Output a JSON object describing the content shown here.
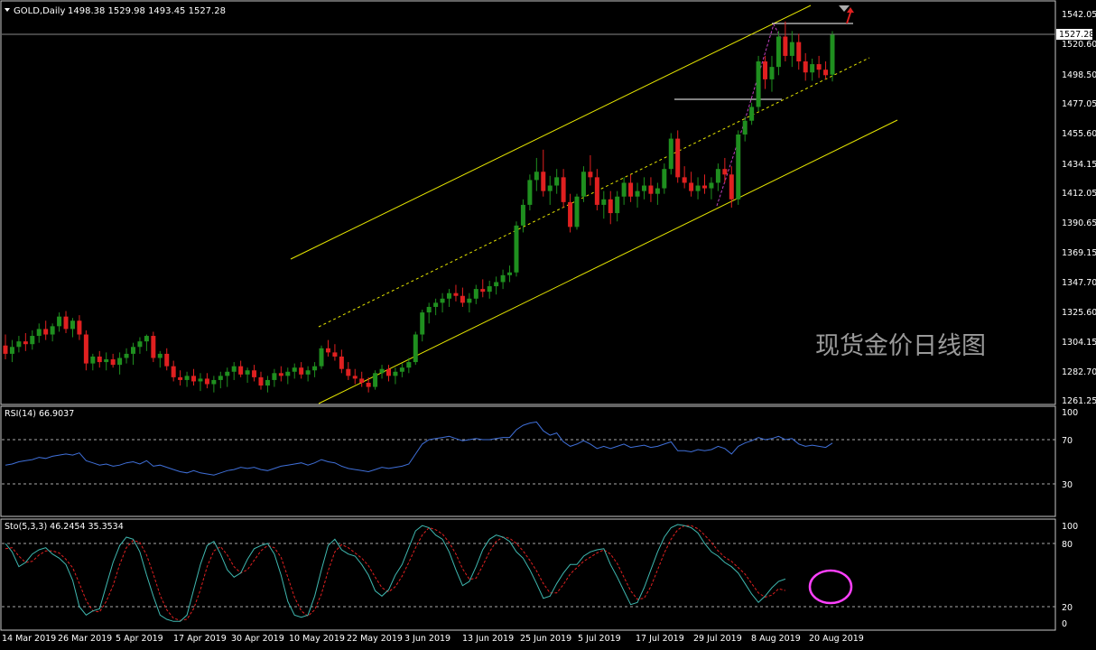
{
  "colors": {
    "background": "#000000",
    "frame": "#c8c8c8",
    "text": "#ffffff",
    "bull": "#1f8f1f",
    "bear": "#e02020",
    "channel": "#e6e600",
    "rsi_line": "#3f6fd8",
    "sto_main": "#3fb8b0",
    "sto_signal": "#e02020",
    "trend_magenta": "#c040c0",
    "circle": "#ff40ff",
    "current_price": "#888888"
  },
  "header": {
    "symbol_line": "GOLD,Daily",
    "ohlc": "1498.38 1529.98 1493.45 1527.28"
  },
  "watermark": "现货金价日线图",
  "price_axis": {
    "labels": [
      "1542.05",
      "1520.60",
      "1498.50",
      "1477.05",
      "1455.60",
      "1434.15",
      "1412.05",
      "1390.65",
      "1369.15",
      "1347.70",
      "1325.60",
      "1304.15",
      "1282.70",
      "1261.25"
    ],
    "current_label": "1527.28",
    "current_value": 1527.28
  },
  "rsi_panel": {
    "title": "RSI(14) 66.9037",
    "axis_labels": [
      "100",
      "70",
      "30"
    ],
    "levels": [
      70,
      30
    ]
  },
  "sto_panel": {
    "title": "Sto(5,3,3) 46.2454 35.3534",
    "axis_labels": [
      "100",
      "80",
      "20",
      "0"
    ],
    "levels": [
      80,
      20
    ]
  },
  "date_axis": {
    "labels": [
      "14 Mar 2019",
      "26 Mar 2019",
      "5 Apr 2019",
      "17 Apr 2019",
      "30 Apr 2019",
      "10 May 2019",
      "22 May 2019",
      "3 Jun 2019",
      "13 Jun 2019",
      "25 Jun 2019",
      "5 Jul 2019",
      "17 Jul 2019",
      "29 Jul 2019",
      "8 Aug 2019",
      "20 Aug 2019"
    ]
  },
  "chart_data": {
    "type": "candlestick",
    "title": "GOLD,Daily",
    "symbol": "GOLD",
    "timeframe": "Daily",
    "last_bar": {
      "open": 1498.38,
      "high": 1529.98,
      "low": 1493.45,
      "close": 1527.28
    },
    "ylim": [
      1258,
      1546
    ],
    "x_tick_labels": [
      "14 Mar 2019",
      "26 Mar 2019",
      "5 Apr 2019",
      "17 Apr 2019",
      "30 Apr 2019",
      "10 May 2019",
      "22 May 2019",
      "3 Jun 2019",
      "13 Jun 2019",
      "25 Jun 2019",
      "5 Jul 2019",
      "17 Jul 2019",
      "29 Jul 2019",
      "8 Aug 2019",
      "20 Aug 2019"
    ],
    "candles": [
      [
        1302,
        1310,
        1292,
        1296
      ],
      [
        1296,
        1306,
        1290,
        1301
      ],
      [
        1301,
        1309,
        1297,
        1305
      ],
      [
        1305,
        1311,
        1298,
        1303
      ],
      [
        1303,
        1313,
        1299,
        1309
      ],
      [
        1309,
        1318,
        1304,
        1314
      ],
      [
        1314,
        1320,
        1306,
        1310
      ],
      [
        1310,
        1318,
        1305,
        1316
      ],
      [
        1316,
        1326,
        1312,
        1323
      ],
      [
        1323,
        1327,
        1311,
        1314
      ],
      [
        1314,
        1322,
        1308,
        1320
      ],
      [
        1320,
        1324,
        1306,
        1310
      ],
      [
        1310,
        1313,
        1284,
        1289
      ],
      [
        1289,
        1296,
        1284,
        1294
      ],
      [
        1294,
        1298,
        1286,
        1290
      ],
      [
        1290,
        1297,
        1284,
        1292
      ],
      [
        1292,
        1296,
        1286,
        1288
      ],
      [
        1288,
        1297,
        1281,
        1293
      ],
      [
        1293,
        1300,
        1289,
        1296
      ],
      [
        1296,
        1304,
        1288,
        1301
      ],
      [
        1301,
        1308,
        1296,
        1305
      ],
      [
        1305,
        1310,
        1298,
        1309
      ],
      [
        1309,
        1312,
        1290,
        1293
      ],
      [
        1293,
        1298,
        1286,
        1296
      ],
      [
        1296,
        1300,
        1284,
        1287
      ],
      [
        1287,
        1291,
        1276,
        1279
      ],
      [
        1279,
        1284,
        1273,
        1277
      ],
      [
        1277,
        1283,
        1272,
        1280
      ],
      [
        1280,
        1285,
        1273,
        1276
      ],
      [
        1276,
        1282,
        1269,
        1278
      ],
      [
        1278,
        1282,
        1271,
        1274
      ],
      [
        1274,
        1280,
        1268,
        1277
      ],
      [
        1277,
        1283,
        1271,
        1280
      ],
      [
        1280,
        1286,
        1272,
        1283
      ],
      [
        1283,
        1290,
        1277,
        1287
      ],
      [
        1287,
        1291,
        1279,
        1281
      ],
      [
        1281,
        1286,
        1275,
        1284
      ],
      [
        1284,
        1288,
        1276,
        1279
      ],
      [
        1279,
        1283,
        1270,
        1273
      ],
      [
        1273,
        1280,
        1268,
        1277
      ],
      [
        1277,
        1285,
        1272,
        1282
      ],
      [
        1282,
        1287,
        1276,
        1280
      ],
      [
        1280,
        1286,
        1274,
        1283
      ],
      [
        1283,
        1289,
        1278,
        1286
      ],
      [
        1286,
        1290,
        1278,
        1281
      ],
      [
        1281,
        1287,
        1276,
        1284
      ],
      [
        1284,
        1290,
        1279,
        1287
      ],
      [
        1287,
        1302,
        1285,
        1300
      ],
      [
        1300,
        1306,
        1294,
        1297
      ],
      [
        1297,
        1303,
        1291,
        1294
      ],
      [
        1294,
        1299,
        1282,
        1285
      ],
      [
        1285,
        1290,
        1277,
        1280
      ],
      [
        1280,
        1285,
        1274,
        1278
      ],
      [
        1278,
        1283,
        1272,
        1275
      ],
      [
        1275,
        1279,
        1268,
        1272
      ],
      [
        1272,
        1284,
        1270,
        1282
      ],
      [
        1282,
        1288,
        1278,
        1285
      ],
      [
        1285,
        1288,
        1276,
        1280
      ],
      [
        1280,
        1286,
        1274,
        1283
      ],
      [
        1283,
        1289,
        1279,
        1286
      ],
      [
        1286,
        1293,
        1282,
        1290
      ],
      [
        1290,
        1312,
        1288,
        1310
      ],
      [
        1310,
        1328,
        1305,
        1326
      ],
      [
        1326,
        1333,
        1318,
        1330
      ],
      [
        1330,
        1336,
        1324,
        1333
      ],
      [
        1333,
        1340,
        1326,
        1336
      ],
      [
        1336,
        1343,
        1330,
        1340
      ],
      [
        1340,
        1346,
        1334,
        1338
      ],
      [
        1338,
        1344,
        1330,
        1333
      ],
      [
        1333,
        1340,
        1326,
        1336
      ],
      [
        1336,
        1346,
        1332,
        1343
      ],
      [
        1343,
        1350,
        1337,
        1341
      ],
      [
        1341,
        1349,
        1336,
        1345
      ],
      [
        1345,
        1352,
        1339,
        1348
      ],
      [
        1348,
        1357,
        1343,
        1353
      ],
      [
        1353,
        1360,
        1348,
        1355
      ],
      [
        1355,
        1392,
        1352,
        1389
      ],
      [
        1389,
        1408,
        1384,
        1404
      ],
      [
        1404,
        1426,
        1400,
        1422
      ],
      [
        1422,
        1438,
        1414,
        1428
      ],
      [
        1428,
        1444,
        1410,
        1414
      ],
      [
        1414,
        1425,
        1404,
        1418
      ],
      [
        1418,
        1430,
        1412,
        1424
      ],
      [
        1424,
        1430,
        1402,
        1406
      ],
      [
        1406,
        1412,
        1384,
        1388
      ],
      [
        1388,
        1412,
        1386,
        1410
      ],
      [
        1410,
        1432,
        1406,
        1428
      ],
      [
        1428,
        1440,
        1418,
        1424
      ],
      [
        1424,
        1430,
        1400,
        1404
      ],
      [
        1404,
        1414,
        1394,
        1408
      ],
      [
        1408,
        1414,
        1390,
        1398
      ],
      [
        1398,
        1414,
        1392,
        1410
      ],
      [
        1410,
        1424,
        1404,
        1420
      ],
      [
        1420,
        1426,
        1406,
        1410
      ],
      [
        1410,
        1420,
        1402,
        1414
      ],
      [
        1414,
        1424,
        1408,
        1418
      ],
      [
        1418,
        1424,
        1406,
        1412
      ],
      [
        1412,
        1420,
        1404,
        1416
      ],
      [
        1416,
        1434,
        1412,
        1430
      ],
      [
        1430,
        1456,
        1426,
        1452
      ],
      [
        1452,
        1458,
        1420,
        1424
      ],
      [
        1424,
        1432,
        1416,
        1420
      ],
      [
        1420,
        1428,
        1410,
        1414
      ],
      [
        1414,
        1424,
        1408,
        1418
      ],
      [
        1418,
        1426,
        1412,
        1416
      ],
      [
        1416,
        1424,
        1408,
        1420
      ],
      [
        1420,
        1434,
        1414,
        1430
      ],
      [
        1430,
        1438,
        1420,
        1426
      ],
      [
        1426,
        1432,
        1402,
        1408
      ],
      [
        1408,
        1458,
        1404,
        1455
      ],
      [
        1455,
        1468,
        1450,
        1465
      ],
      [
        1465,
        1478,
        1462,
        1475
      ],
      [
        1475,
        1512,
        1472,
        1508
      ],
      [
        1508,
        1512,
        1488,
        1495
      ],
      [
        1495,
        1512,
        1486,
        1504
      ],
      [
        1504,
        1530,
        1498,
        1526
      ],
      [
        1526,
        1537,
        1508,
        1512
      ],
      [
        1512,
        1530,
        1504,
        1522
      ],
      [
        1522,
        1528,
        1502,
        1508
      ],
      [
        1508,
        1514,
        1494,
        1500
      ],
      [
        1500,
        1510,
        1494,
        1506
      ],
      [
        1506,
        1512,
        1496,
        1502
      ],
      [
        1502,
        1508,
        1495,
        1498
      ],
      [
        1498.38,
        1529.98,
        1493.45,
        1527.28
      ]
    ],
    "rsi": [
      47,
      48,
      50,
      51,
      52,
      54,
      53,
      55,
      56,
      57,
      56,
      58,
      51,
      49,
      47,
      48,
      46,
      47,
      49,
      50,
      48,
      51,
      46,
      47,
      45,
      43,
      41,
      40,
      42,
      40,
      39,
      38,
      40,
      42,
      43,
      45,
      44,
      45,
      43,
      42,
      44,
      46,
      47,
      48,
      49,
      47,
      49,
      52,
      50,
      49,
      46,
      44,
      43,
      42,
      41,
      43,
      45,
      44,
      45,
      46,
      48,
      57,
      66,
      70,
      71,
      72,
      73,
      71,
      69,
      70,
      71,
      70,
      70,
      71,
      72,
      72,
      79,
      83,
      85,
      86,
      78,
      74,
      76,
      68,
      64,
      66,
      69,
      66,
      62,
      64,
      62,
      64,
      66,
      63,
      64,
      65,
      63,
      64,
      66,
      68,
      60,
      60,
      59,
      61,
      60,
      61,
      64,
      62,
      57,
      64,
      67,
      69,
      72,
      70,
      71,
      73,
      70,
      71,
      66,
      64,
      65,
      64,
      63,
      66.9037
    ],
    "sto_main": [
      80,
      72,
      58,
      62,
      70,
      74,
      76,
      70,
      66,
      60,
      45,
      20,
      12,
      16,
      18,
      40,
      62,
      78,
      86,
      84,
      72,
      50,
      30,
      12,
      8,
      6,
      6,
      12,
      36,
      60,
      78,
      82,
      70,
      55,
      48,
      52,
      65,
      75,
      78,
      80,
      70,
      50,
      25,
      12,
      10,
      12,
      30,
      55,
      78,
      84,
      74,
      70,
      68,
      60,
      50,
      35,
      30,
      36,
      50,
      60,
      76,
      92,
      97,
      95,
      88,
      84,
      72,
      55,
      40,
      44,
      58,
      74,
      84,
      88,
      86,
      82,
      72,
      66,
      55,
      42,
      28,
      30,
      42,
      52,
      60,
      60,
      68,
      72,
      74,
      75,
      60,
      48,
      35,
      22,
      24,
      38,
      55,
      72,
      86,
      95,
      98,
      97,
      95,
      90,
      80,
      72,
      68,
      62,
      58,
      52,
      42,
      32,
      24,
      30,
      38,
      44,
      46.2454
    ],
    "sto_signal": [
      75,
      76,
      68,
      62,
      63,
      69,
      73,
      73,
      71,
      65,
      57,
      42,
      26,
      16,
      15,
      25,
      40,
      60,
      76,
      83,
      81,
      69,
      51,
      31,
      17,
      9,
      7,
      8,
      18,
      36,
      58,
      73,
      77,
      69,
      58,
      52,
      55,
      64,
      73,
      78,
      76,
      67,
      48,
      29,
      16,
      11,
      17,
      32,
      54,
      72,
      79,
      76,
      71,
      66,
      59,
      48,
      38,
      34,
      39,
      49,
      62,
      76,
      88,
      95,
      93,
      89,
      81,
      70,
      56,
      46,
      47,
      59,
      72,
      82,
      86,
      85,
      80,
      73,
      64,
      54,
      42,
      33,
      33,
      41,
      51,
      57,
      63,
      67,
      71,
      74,
      70,
      61,
      48,
      35,
      27,
      28,
      39,
      55,
      71,
      84,
      93,
      97,
      97,
      94,
      88,
      81,
      73,
      67,
      63,
      57,
      51,
      42,
      33,
      29,
      31,
      37,
      35.3534
    ]
  }
}
